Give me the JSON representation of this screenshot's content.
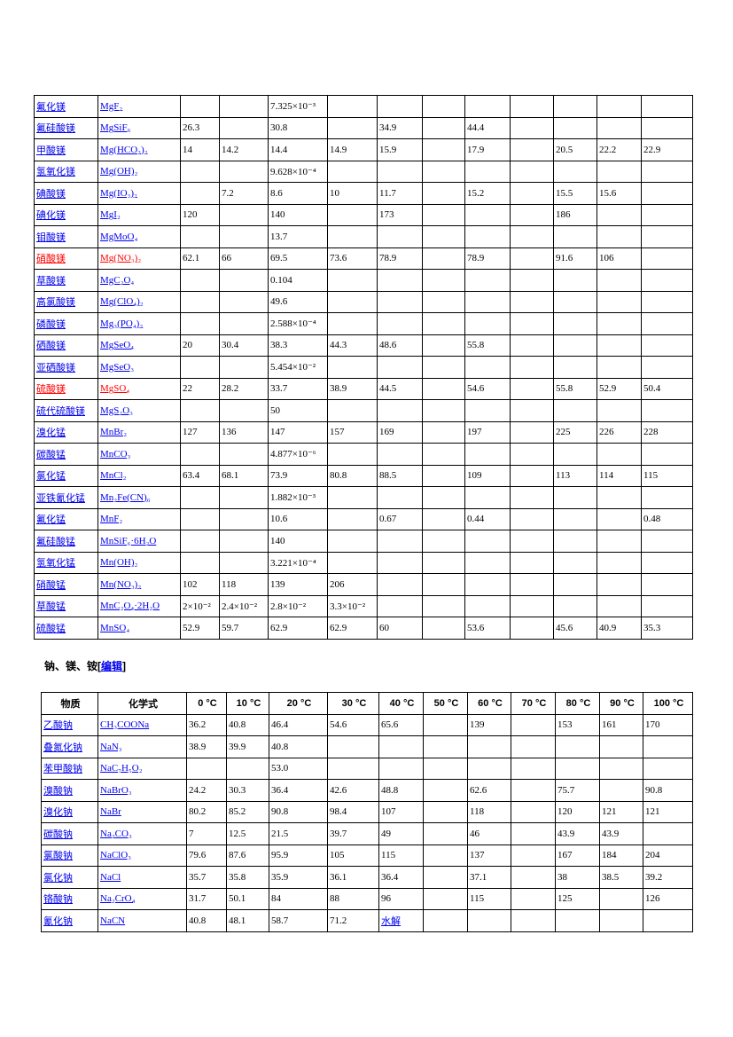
{
  "table1": {
    "rows": [
      {
        "name": "氟化镁",
        "formula": "MgF₂",
        "values": [
          null,
          null,
          "7.325×10⁻³",
          null,
          null,
          null,
          null,
          null,
          null,
          null,
          null
        ]
      },
      {
        "name": "氟硅酸镁",
        "formula": "MgSiF₆",
        "values": [
          "26.3",
          null,
          "30.8",
          null,
          "34.9",
          null,
          "44.4",
          null,
          null,
          null,
          null
        ]
      },
      {
        "name": "甲酸镁",
        "formula": "Mg(HCO₂)₂",
        "values": [
          "14",
          "14.2",
          "14.4",
          "14.9",
          "15.9",
          null,
          "17.9",
          null,
          "20.5",
          "22.2",
          "22.9"
        ]
      },
      {
        "name": "氢氧化镁",
        "formula": "Mg(OH)₂",
        "values": [
          null,
          null,
          "9.628×10⁻⁴",
          null,
          null,
          null,
          null,
          null,
          null,
          null,
          null
        ]
      },
      {
        "name": "碘酸镁",
        "formula": "Mg(IO₃)₂",
        "values": [
          null,
          "7.2",
          "8.6",
          "10",
          "11.7",
          null,
          "15.2",
          null,
          "15.5",
          "15.6",
          null
        ]
      },
      {
        "name": "碘化镁",
        "formula": "MgI₂",
        "values": [
          "120",
          null,
          "140",
          null,
          "173",
          null,
          null,
          null,
          "186",
          null,
          null
        ]
      },
      {
        "name": "钼酸镁",
        "formula": "MgMoO₄",
        "values": [
          null,
          null,
          "13.7",
          null,
          null,
          null,
          null,
          null,
          null,
          null,
          null
        ]
      },
      {
        "name": "硝酸镁",
        "formula": "Mg(NO₃)₂",
        "highlight": true,
        "values": [
          "62.1",
          "66",
          "69.5",
          "73.6",
          "78.9",
          null,
          "78.9",
          null,
          "91.6",
          "106",
          null
        ]
      },
      {
        "name": "草酸镁",
        "formula": "MgC₂O₄",
        "values": [
          null,
          null,
          "0.104",
          null,
          null,
          null,
          null,
          null,
          null,
          null,
          null
        ]
      },
      {
        "name": "高氯酸镁",
        "formula": "Mg(ClO₄)₂",
        "values": [
          null,
          null,
          "49.6",
          null,
          null,
          null,
          null,
          null,
          null,
          null,
          null
        ]
      },
      {
        "name": "磷酸镁",
        "formula": "Mg₃(PO₄)₂",
        "values": [
          null,
          null,
          "2.588×10⁻⁴",
          null,
          null,
          null,
          null,
          null,
          null,
          null,
          null
        ]
      },
      {
        "name": "硒酸镁",
        "formula": "MgSeO₄",
        "values": [
          "20",
          "30.4",
          "38.3",
          "44.3",
          "48.6",
          null,
          "55.8",
          null,
          null,
          null,
          null
        ]
      },
      {
        "name": "亚硒酸镁",
        "formula": "MgSeO₃",
        "values": [
          null,
          null,
          "5.454×10⁻²",
          null,
          null,
          null,
          null,
          null,
          null,
          null,
          null
        ]
      },
      {
        "name": "硫酸镁",
        "formula": "MgSO₄",
        "highlight": true,
        "values": [
          "22",
          "28.2",
          "33.7",
          "38.9",
          "44.5",
          null,
          "54.6",
          null,
          "55.8",
          "52.9",
          "50.4"
        ]
      },
      {
        "name": "硫代硫酸镁",
        "formula": "MgS₂O₃",
        "values": [
          null,
          null,
          "50",
          null,
          null,
          null,
          null,
          null,
          null,
          null,
          null
        ]
      },
      {
        "name": "溴化锰",
        "formula": "MnBr₂",
        "values": [
          "127",
          "136",
          "147",
          "157",
          "169",
          null,
          "197",
          null,
          "225",
          "226",
          "228"
        ]
      },
      {
        "name": "碳酸锰",
        "formula": "MnCO₃",
        "values": [
          null,
          null,
          "4.877×10⁻⁶",
          null,
          null,
          null,
          null,
          null,
          null,
          null,
          null
        ]
      },
      {
        "name": "氯化锰",
        "formula": "MnCl₂",
        "values": [
          "63.4",
          "68.1",
          "73.9",
          "80.8",
          "88.5",
          null,
          "109",
          null,
          "113",
          "114",
          "115"
        ]
      },
      {
        "name": "亚铁氰化锰",
        "formula": "Mn₂Fe(CN)₆",
        "values": [
          null,
          null,
          "1.882×10⁻³",
          null,
          null,
          null,
          null,
          null,
          null,
          null,
          null
        ]
      },
      {
        "name": "氟化锰",
        "formula": "MnF₂",
        "values": [
          null,
          null,
          "10.6",
          null,
          "0.67",
          null,
          "0.44",
          null,
          null,
          null,
          "0.48"
        ]
      },
      {
        "name": "氟硅酸锰",
        "formula": "MnSiF₆·6H₂O",
        "values": [
          null,
          null,
          "140",
          null,
          null,
          null,
          null,
          null,
          null,
          null,
          null
        ]
      },
      {
        "name": "氢氧化锰",
        "formula": "Mn(OH)₂",
        "values": [
          null,
          null,
          "3.221×10⁻⁴",
          null,
          null,
          null,
          null,
          null,
          null,
          null,
          null
        ]
      },
      {
        "name": "硝酸锰",
        "formula": "Mn(NO₃)₂",
        "values": [
          "102",
          "118",
          "139",
          "206",
          null,
          null,
          null,
          null,
          null,
          null,
          null
        ]
      },
      {
        "name": "草酸锰",
        "formula": "MnC₂O₄·2H₂O",
        "values": [
          "2×10⁻²",
          "2.4×10⁻²",
          "2.8×10⁻²",
          "3.3×10⁻²",
          null,
          null,
          null,
          null,
          null,
          null,
          null
        ]
      },
      {
        "name": "硫酸锰",
        "formula": "MnSO₄",
        "values": [
          "52.9",
          "59.7",
          "62.9",
          "62.9",
          "60",
          null,
          "53.6",
          null,
          "45.6",
          "40.9",
          "35.3"
        ]
      }
    ]
  },
  "section": {
    "heading": [
      "钠、镁、铵[",
      "编辑",
      "]"
    ]
  },
  "table2": {
    "header": [
      "物质",
      "化学式",
      "0 °C",
      "10 °C",
      "20 °C",
      "30 °C",
      "40 °C",
      "50 °C",
      "60 °C",
      "70 °C",
      "80 °C",
      "90 °C",
      "100 °C"
    ],
    "rows": [
      {
        "name": "乙酸钠",
        "formula": "CH₃COONa",
        "values": [
          "36.2",
          "40.8",
          "46.4",
          "54.6",
          "65.6",
          null,
          "139",
          null,
          "153",
          "161",
          "170"
        ]
      },
      {
        "name": "叠氮化钠",
        "formula": "NaN₃",
        "values": [
          "38.9",
          "39.9",
          "40.8",
          null,
          null,
          null,
          null,
          null,
          null,
          null,
          null
        ]
      },
      {
        "name": "苯甲酸钠",
        "formula": "NaC₇H₅O₂",
        "values": [
          null,
          null,
          "53.0",
          null,
          null,
          null,
          null,
          null,
          null,
          null,
          null
        ]
      },
      {
        "name": "溴酸钠",
        "formula": "NaBrO₃",
        "values": [
          "24.2",
          "30.3",
          "36.4",
          "42.6",
          "48.8",
          null,
          "62.6",
          null,
          "75.7",
          null,
          "90.8"
        ]
      },
      {
        "name": "溴化钠",
        "formula": "NaBr",
        "values": [
          "80.2",
          "85.2",
          "90.8",
          "98.4",
          "107",
          null,
          "118",
          null,
          "120",
          "121",
          "121"
        ]
      },
      {
        "name": "碳酸钠",
        "formula": "Na₂CO₃",
        "values": [
          "7",
          "12.5",
          "21.5",
          "39.7",
          "49",
          null,
          "46",
          null,
          "43.9",
          "43.9",
          null
        ]
      },
      {
        "name": "氯酸钠",
        "formula": "NaClO₃",
        "values": [
          "79.6",
          "87.6",
          "95.9",
          "105",
          "115",
          null,
          "137",
          null,
          "167",
          "184",
          "204"
        ]
      },
      {
        "name": "氯化钠",
        "formula": "NaCl",
        "values": [
          "35.7",
          "35.8",
          "35.9",
          "36.1",
          "36.4",
          null,
          "37.1",
          null,
          "38",
          "38.5",
          "39.2"
        ]
      },
      {
        "name": "铬酸钠",
        "formula": "Na₂CrO₄",
        "values": [
          "31.7",
          "50.1",
          "84",
          "88",
          "96",
          null,
          "115",
          null,
          "125",
          null,
          "126"
        ]
      },
      {
        "name": "氰化钠",
        "formula": "NaCN",
        "values": [
          "40.8",
          "48.1",
          "58.7",
          "71.2",
          "水解",
          null,
          null,
          null,
          null,
          null,
          null
        ]
      }
    ]
  }
}
